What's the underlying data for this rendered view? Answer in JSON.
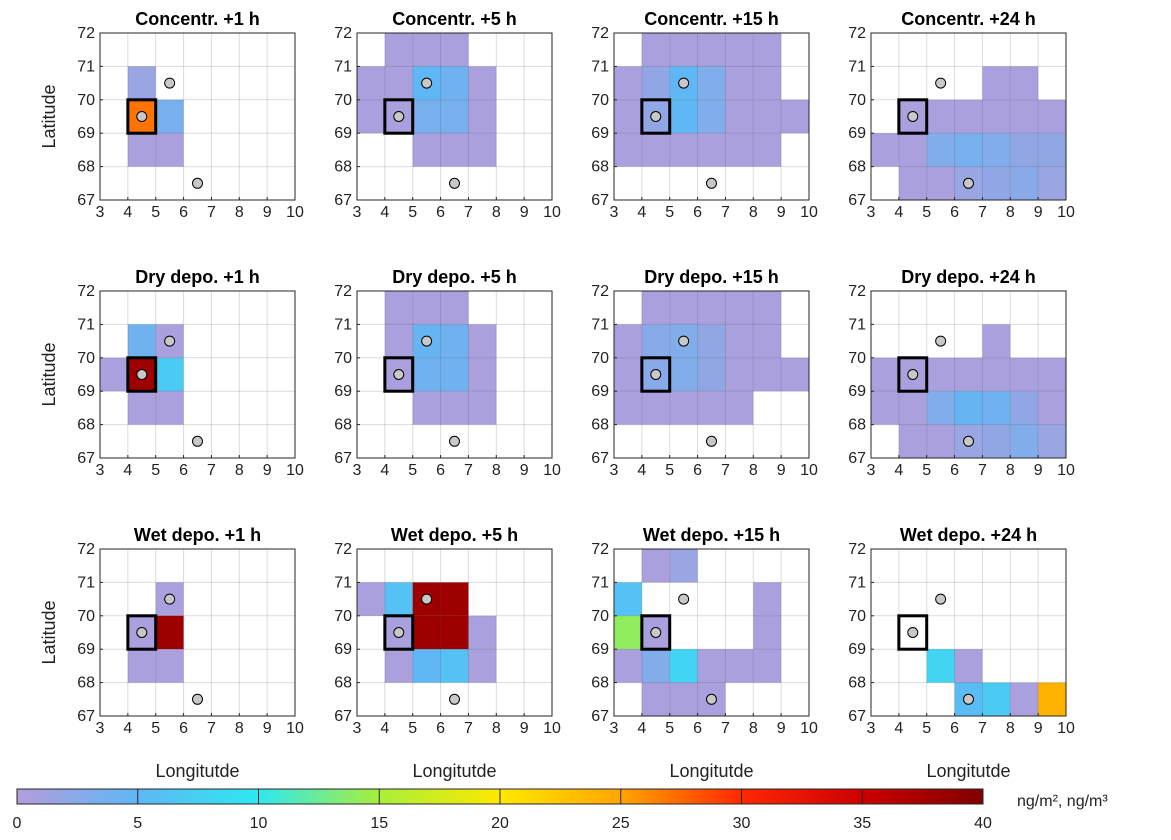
{
  "chart_data": {
    "type": "heatmap",
    "xlabel": "Longitutde",
    "ylabel": "Latitude",
    "xlim": [
      3,
      10
    ],
    "ylim": [
      67,
      72
    ],
    "xticks": [
      "3",
      "4",
      "5",
      "6",
      "7",
      "8",
      "9",
      "10"
    ],
    "yticks": [
      "72",
      "71",
      "70",
      "69",
      "68",
      "67"
    ],
    "grid": true,
    "colorbar": {
      "label": "ng/m², ng/m³",
      "min": 0,
      "max": 40,
      "ticks": [
        "0",
        "5",
        "10",
        "15",
        "20",
        "25",
        "30",
        "35",
        "40"
      ],
      "colors": [
        "#b39ddb",
        "#5fb7f5",
        "#2ee8f0",
        "#a8ef3a",
        "#ffe800",
        "#ffa500",
        "#ff2800",
        "#cc0000",
        "#800000"
      ]
    },
    "source": {
      "lon": 4.5,
      "lat": 69.5
    },
    "stations": [
      {
        "lon": 5.5,
        "lat": 70.5
      },
      {
        "lon": 6.5,
        "lat": 67.5
      }
    ],
    "panels": [
      {
        "title": "Concentr.  +1 h",
        "cells": [
          [
            4,
            70,
            1.5
          ],
          [
            4,
            69,
            27
          ],
          [
            5,
            69,
            3.5
          ],
          [
            4,
            68,
            0.5
          ],
          [
            5,
            68,
            0.5
          ]
        ]
      },
      {
        "title": "Concentr.  +5 h",
        "cells": [
          [
            4,
            71,
            0.5
          ],
          [
            5,
            71,
            0.5
          ],
          [
            6,
            71,
            0.5
          ],
          [
            3,
            70,
            0.5
          ],
          [
            4,
            70,
            0.5
          ],
          [
            5,
            70,
            5
          ],
          [
            6,
            70,
            4
          ],
          [
            7,
            70,
            0.5
          ],
          [
            3,
            69,
            0.5
          ],
          [
            4,
            69,
            0.5
          ],
          [
            5,
            69,
            3.5
          ],
          [
            6,
            69,
            3.5
          ],
          [
            7,
            69,
            0.5
          ],
          [
            5,
            68,
            0.5
          ],
          [
            6,
            68,
            0.5
          ],
          [
            7,
            68,
            0.5
          ]
        ]
      },
      {
        "title": "Concentr.  +15 h",
        "cells": [
          [
            4,
            71,
            0.5
          ],
          [
            5,
            71,
            0.5
          ],
          [
            6,
            71,
            0.5
          ],
          [
            7,
            71,
            0.5
          ],
          [
            8,
            71,
            0.5
          ],
          [
            3,
            70,
            0.5
          ],
          [
            4,
            70,
            2
          ],
          [
            5,
            70,
            5
          ],
          [
            6,
            70,
            3
          ],
          [
            7,
            70,
            0.5
          ],
          [
            8,
            70,
            0.5
          ],
          [
            3,
            69,
            0.5
          ],
          [
            4,
            69,
            2
          ],
          [
            5,
            69,
            5
          ],
          [
            6,
            69,
            3
          ],
          [
            7,
            69,
            0.5
          ],
          [
            8,
            69,
            0.5
          ],
          [
            9,
            69,
            0.5
          ],
          [
            3,
            68,
            0.5
          ],
          [
            4,
            68,
            0.5
          ],
          [
            5,
            68,
            0.5
          ],
          [
            6,
            68,
            0.5
          ],
          [
            7,
            68,
            0.5
          ],
          [
            8,
            68,
            0.5
          ]
        ]
      },
      {
        "title": "Concentr.  +24 h",
        "cells": [
          [
            7,
            70,
            0.5
          ],
          [
            8,
            70,
            0.5
          ],
          [
            4,
            69,
            0.5
          ],
          [
            5,
            69,
            0.5
          ],
          [
            6,
            69,
            0.5
          ],
          [
            7,
            69,
            0.5
          ],
          [
            8,
            69,
            0.5
          ],
          [
            9,
            69,
            0.5
          ],
          [
            3,
            68,
            0.5
          ],
          [
            4,
            68,
            0.5
          ],
          [
            5,
            68,
            3
          ],
          [
            6,
            68,
            3.5
          ],
          [
            7,
            68,
            3
          ],
          [
            8,
            68,
            2
          ],
          [
            9,
            68,
            2
          ],
          [
            4,
            67,
            0.5
          ],
          [
            5,
            67,
            0.5
          ],
          [
            6,
            67,
            1.5
          ],
          [
            7,
            67,
            2
          ],
          [
            8,
            67,
            2.5
          ],
          [
            9,
            67,
            1.5
          ]
        ]
      },
      {
        "title": "Dry depo.  +1 h",
        "cells": [
          [
            4,
            70,
            4
          ],
          [
            5,
            70,
            0.5
          ],
          [
            3,
            69,
            0.5
          ],
          [
            4,
            69,
            38
          ],
          [
            5,
            69,
            7
          ],
          [
            4,
            68,
            0.5
          ],
          [
            5,
            68,
            0.5
          ]
        ]
      },
      {
        "title": "Dry depo.  +5 h",
        "cells": [
          [
            4,
            71,
            0.5
          ],
          [
            5,
            71,
            0.5
          ],
          [
            6,
            71,
            0.5
          ],
          [
            4,
            70,
            0.5
          ],
          [
            5,
            70,
            4.5
          ],
          [
            6,
            70,
            4
          ],
          [
            7,
            70,
            0.5
          ],
          [
            4,
            69,
            0.5
          ],
          [
            5,
            69,
            4
          ],
          [
            6,
            69,
            4
          ],
          [
            7,
            69,
            0.5
          ],
          [
            5,
            68,
            0.5
          ],
          [
            6,
            68,
            0.5
          ],
          [
            7,
            68,
            0.5
          ]
        ]
      },
      {
        "title": "Dry depo.  +15 h",
        "cells": [
          [
            4,
            71,
            0.5
          ],
          [
            5,
            71,
            0.5
          ],
          [
            6,
            71,
            0.5
          ],
          [
            7,
            71,
            0.5
          ],
          [
            8,
            71,
            0.5
          ],
          [
            3,
            70,
            0.5
          ],
          [
            4,
            70,
            2.5
          ],
          [
            5,
            70,
            3
          ],
          [
            6,
            70,
            2
          ],
          [
            7,
            70,
            0.5
          ],
          [
            8,
            70,
            0.5
          ],
          [
            3,
            69,
            0.5
          ],
          [
            4,
            69,
            2.5
          ],
          [
            5,
            69,
            3
          ],
          [
            6,
            69,
            2
          ],
          [
            7,
            69,
            0.5
          ],
          [
            8,
            69,
            0.5
          ],
          [
            9,
            69,
            0.5
          ],
          [
            3,
            68,
            0.5
          ],
          [
            4,
            68,
            0.5
          ],
          [
            5,
            68,
            0.5
          ],
          [
            6,
            68,
            0.5
          ],
          [
            7,
            68,
            0.5
          ]
        ]
      },
      {
        "title": "Dry depo.  +24 h",
        "cells": [
          [
            7,
            70,
            0.5
          ],
          [
            3,
            69,
            0.5
          ],
          [
            4,
            69,
            0.5
          ],
          [
            5,
            69,
            0.5
          ],
          [
            6,
            69,
            0.5
          ],
          [
            7,
            69,
            0.5
          ],
          [
            8,
            69,
            0.5
          ],
          [
            9,
            69,
            0.5
          ],
          [
            3,
            68,
            0.5
          ],
          [
            4,
            68,
            0.5
          ],
          [
            5,
            68,
            3
          ],
          [
            6,
            68,
            4.5
          ],
          [
            7,
            68,
            4
          ],
          [
            8,
            68,
            2
          ],
          [
            9,
            68,
            0.5
          ],
          [
            4,
            67,
            0.5
          ],
          [
            5,
            67,
            0.5
          ],
          [
            6,
            67,
            1.5
          ],
          [
            7,
            67,
            2
          ],
          [
            8,
            67,
            3
          ],
          [
            9,
            67,
            1.5
          ]
        ]
      },
      {
        "title": "Wet depo.  +1 h",
        "cells": [
          [
            5,
            70,
            0.5
          ],
          [
            4,
            69,
            0.5
          ],
          [
            5,
            69,
            38
          ],
          [
            4,
            68,
            0.5
          ],
          [
            5,
            68,
            0.5
          ]
        ]
      },
      {
        "title": "Wet depo.  +5 h",
        "cells": [
          [
            3,
            70,
            0.5
          ],
          [
            4,
            70,
            6
          ],
          [
            5,
            70,
            38
          ],
          [
            6,
            70,
            38
          ],
          [
            4,
            69,
            0.5
          ],
          [
            5,
            69,
            38
          ],
          [
            6,
            69,
            38
          ],
          [
            7,
            69,
            0.5
          ],
          [
            4,
            68,
            0.5
          ],
          [
            5,
            68,
            5
          ],
          [
            6,
            68,
            6
          ],
          [
            7,
            68,
            0.5
          ]
        ]
      },
      {
        "title": "Wet depo.  +15 h",
        "cells": [
          [
            4,
            71,
            0.5
          ],
          [
            5,
            71,
            1.5
          ],
          [
            3,
            70,
            6
          ],
          [
            8,
            70,
            0.5
          ],
          [
            3,
            69,
            14
          ],
          [
            4,
            69,
            0.5
          ],
          [
            8,
            69,
            0.5
          ],
          [
            3,
            68,
            0.5
          ],
          [
            4,
            68,
            3
          ],
          [
            5,
            68,
            8
          ],
          [
            6,
            68,
            0.5
          ],
          [
            7,
            68,
            0.5
          ],
          [
            8,
            68,
            0.5
          ],
          [
            4,
            67,
            0.5
          ],
          [
            5,
            67,
            0.5
          ],
          [
            6,
            67,
            0.5
          ]
        ]
      },
      {
        "title": "Wet depo.  +24 h",
        "cells": [
          [
            5,
            68,
            8
          ],
          [
            6,
            68,
            0.5
          ],
          [
            6,
            67,
            5.5
          ],
          [
            7,
            67,
            7
          ],
          [
            8,
            67,
            0.5
          ],
          [
            9,
            67,
            24
          ]
        ]
      }
    ]
  }
}
